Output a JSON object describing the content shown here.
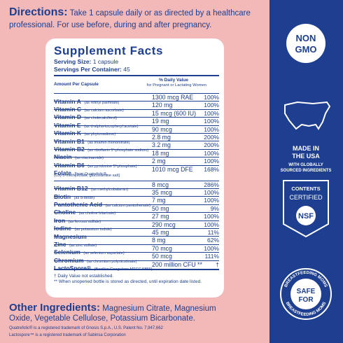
{
  "directions": {
    "label": "Directions:",
    "text_line1": "Take 1 capsule daily or as directed by a healthcare",
    "text_line2": "professional. For use before, during and after pregnancy."
  },
  "facts": {
    "title": "Supplement Facts",
    "serving_size_label": "Serving Size:",
    "serving_size": "1 capsule",
    "servings_label": "Servings Per Container:",
    "servings": "45",
    "header_amount": "Amount Per Capsule",
    "header_dv": "% Daily Value",
    "header_dv_sub": "for Pregnant or Lactating Women",
    "rows": [
      {
        "name": "Vitamin A",
        "note": "(as retinyl palmitate)",
        "amount": "1300 mcg RAE",
        "dv": "100%"
      },
      {
        "name": "Vitamin C",
        "note": "(as calcium ascorbate)",
        "amount": "120 mg",
        "dv": "100%"
      },
      {
        "name": "Vitamin D",
        "note": "(as cholecalciferol)",
        "amount": "15 mcg (600 IU)",
        "dv": "100%"
      },
      {
        "name": "Vitamin E",
        "note": "(as d-alpha-tocopheryl acetate)",
        "amount": "19 mg",
        "dv": "100%"
      },
      {
        "name": "Vitamin K",
        "note": "(as phytonadione)",
        "amount": "90 mcg",
        "dv": "100%"
      },
      {
        "name": "Vitamin B1",
        "note": "(as thiamin mononitrate)",
        "amount": "2.8 mg",
        "dv": "200%"
      },
      {
        "name": "Vitamin B2",
        "note": "(as riboflavin 5'-phosphate sodium)",
        "amount": "3.2 mg",
        "dv": "200%"
      },
      {
        "name": "Niacin",
        "note": "(as niacinamide)",
        "amount": "18 mg",
        "dv": "100%"
      },
      {
        "name": "Vitamin B6",
        "note": "(as pyridoxine 5'-phosphate)",
        "amount": "2 mg",
        "dv": "100%"
      },
      {
        "name": "Folate",
        "note": "[from Quatrefolic®,",
        "note2": "(6S)-5-methylfolate, glucosamine salt]",
        "amount": "1010 mcg DFE",
        "dv": "168%"
      },
      {
        "name": "Vitamin B12",
        "note": "(as methylcobalamin)",
        "amount": "8 mcg",
        "dv": "286%"
      },
      {
        "name": "Biotin",
        "note": "(as d-biotin)",
        "amount": "35 mcg",
        "dv": "100%"
      },
      {
        "name": "Pantothenic Acid",
        "note": "(as calcium pantothenate)",
        "amount": "7 mg",
        "dv": "100%"
      },
      {
        "name": "Choline",
        "note": "(as choline bitartrate)",
        "amount": "50 mg",
        "dv": "9%"
      },
      {
        "name": "Iron",
        "note": "(as ferrous sulfate)",
        "amount": "27 mg",
        "dv": "100%"
      },
      {
        "name": "Iodine",
        "note": "(as potassium iodide)",
        "amount": "290 mcg",
        "dv": "100%"
      },
      {
        "name": "Magnesium",
        "amount": "45 mg",
        "dv": "11%"
      },
      {
        "name": "Zinc",
        "note": "(as zinc sulfate)",
        "amount": "8 mg",
        "dv": "62%"
      },
      {
        "name": "Selenium",
        "note": "(as selenium aspartate)",
        "amount": "70 mcg",
        "dv": "100%"
      },
      {
        "name": "Chromium",
        "note": "(as chromium polynicotinate)",
        "amount": "50 mcg",
        "dv": "111%"
      },
      {
        "name": "LactoSpore®",
        "note": "(Bacillus Coagulans MTCC 5856)",
        "amount": "200 million CFU **",
        "dv": "†"
      }
    ],
    "footnote1": "† Daily Value not established.",
    "footnote2": "** When unopened bottle is stored as directed, until expiration date listed."
  },
  "other": {
    "label": "Other Ingredients:",
    "text_line1": "Magnesium Citrate, Magnesium",
    "text_line2": "Oxide, Vegetable Cellulose, Potassium Bicarbonate."
  },
  "trademarks": [
    "Quatrefolic® is a registered trademark of Gnosis S.p.A., U.S. Patent No. 7,947,662",
    "Lactospore™ is a registered trademark of Sabinsa Corporation"
  ],
  "badges": {
    "non": "NON",
    "gmo": "GMO",
    "made1": "MADE IN",
    "made2": "THE USA",
    "sourced1": "WITH GLOBALLY",
    "sourced2": "SOURCED INGREDIENTS",
    "contents": "CONTENTS",
    "certified": "CERTIFIED",
    "nsf": "NSF",
    "ring_top": "BREASTFEEDING MOMS",
    "ring_bottom": "BREASTFEEDING MOMS",
    "safe": "SAFE",
    "for": "FOR"
  }
}
